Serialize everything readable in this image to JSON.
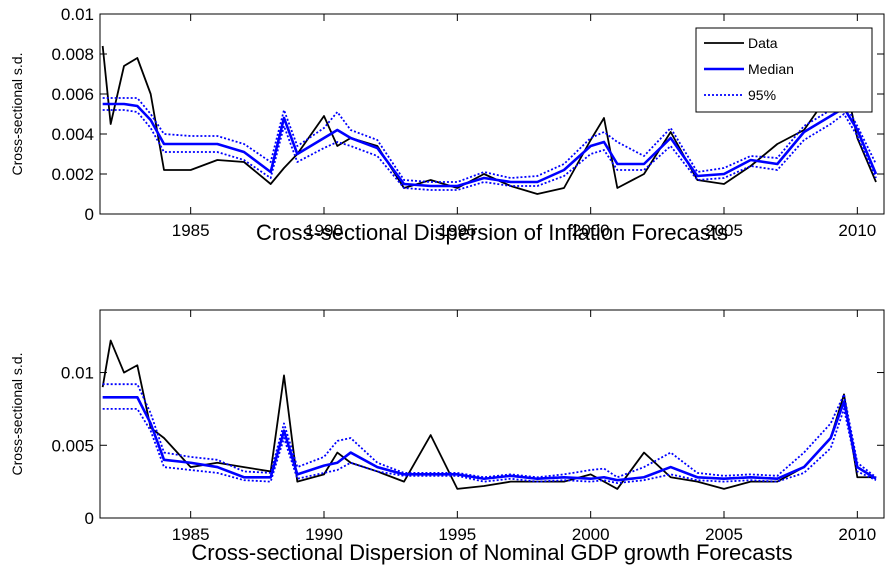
{
  "chart_data": [
    {
      "type": "line",
      "xlabel": "Cross-sectional Dispersion of Inflation Forecasts",
      "ylabel": "Cross-sectional s.d.",
      "xlim": [
        1981.6,
        2011
      ],
      "xticks": [
        1985,
        1990,
        1995,
        2000,
        2005,
        2010
      ],
      "ylim": [
        0,
        0.01
      ],
      "yticks": [
        0,
        0.002,
        0.004,
        0.006,
        0.008,
        0.01
      ],
      "legend": "upper right",
      "x": [
        1981.7,
        1982,
        1982.5,
        1983,
        1983.5,
        1984,
        1985,
        1986,
        1987,
        1988,
        1988.5,
        1989,
        1990,
        1990.5,
        1991,
        1992,
        1993,
        1994,
        1995,
        1996,
        1997,
        1998,
        1999,
        2000,
        2000.5,
        2001,
        2002,
        2003,
        2004,
        2005,
        2006,
        2007,
        2008,
        2009,
        2009.5,
        2010,
        2010.7
      ],
      "series": [
        {
          "name": "Data",
          "color": "#000000",
          "values": [
            0.0084,
            0.0045,
            0.0074,
            0.0078,
            0.006,
            0.0022,
            0.0022,
            0.0027,
            0.0026,
            0.0015,
            0.0023,
            0.003,
            0.0049,
            0.0034,
            0.0038,
            0.0034,
            0.0013,
            0.0017,
            0.0013,
            0.002,
            0.0014,
            0.001,
            0.0013,
            0.0037,
            0.0048,
            0.0013,
            0.002,
            0.0041,
            0.0017,
            0.0015,
            0.0024,
            0.0035,
            0.0042,
            0.0061,
            0.0069,
            0.0038,
            0.0016
          ]
        },
        {
          "name": "Median",
          "color": "#0000ff",
          "values": [
            0.0055,
            0.0055,
            0.0055,
            0.0054,
            0.0047,
            0.0035,
            0.0035,
            0.0035,
            0.0031,
            0.0021,
            0.0048,
            0.003,
            0.0038,
            0.0042,
            0.0038,
            0.0033,
            0.0015,
            0.0014,
            0.0014,
            0.0018,
            0.0016,
            0.0016,
            0.0022,
            0.0034,
            0.0036,
            0.0025,
            0.0025,
            0.0038,
            0.0019,
            0.002,
            0.0027,
            0.0025,
            0.0041,
            0.0049,
            0.0053,
            0.0042,
            0.002
          ]
        },
        {
          "name": "95%",
          "color": "#0000ff",
          "upper": [
            0.0058,
            0.0058,
            0.0058,
            0.0058,
            0.005,
            0.004,
            0.0039,
            0.0039,
            0.0035,
            0.0026,
            0.0052,
            0.0034,
            0.0043,
            0.0051,
            0.0042,
            0.0037,
            0.0017,
            0.0016,
            0.0016,
            0.0021,
            0.0018,
            0.0019,
            0.0025,
            0.0038,
            0.0041,
            0.0036,
            0.0029,
            0.0043,
            0.0021,
            0.0023,
            0.0029,
            0.0028,
            0.0044,
            0.0052,
            0.0056,
            0.0044,
            0.0025
          ],
          "lower": [
            0.0052,
            0.0052,
            0.0052,
            0.0051,
            0.0043,
            0.0031,
            0.0031,
            0.0031,
            0.0027,
            0.0018,
            0.0044,
            0.0026,
            0.0033,
            0.0036,
            0.0034,
            0.0029,
            0.0013,
            0.0012,
            0.0012,
            0.0016,
            0.0014,
            0.0014,
            0.0019,
            0.003,
            0.0032,
            0.0022,
            0.0022,
            0.0034,
            0.0017,
            0.0018,
            0.0024,
            0.0022,
            0.0037,
            0.0045,
            0.005,
            0.0039,
            0.0018
          ]
        }
      ]
    },
    {
      "type": "line",
      "xlabel": "Cross-sectional Dispersion of Nominal GDP growth Forecasts",
      "ylabel": "Cross-sectional s.d.",
      "xlim": [
        1981.6,
        2011
      ],
      "xticks": [
        1985,
        1990,
        1995,
        2000,
        2005,
        2010
      ],
      "ylim": [
        0,
        0.0143
      ],
      "yticks": [
        0,
        0.005,
        0.01
      ],
      "x": [
        1981.7,
        1982,
        1982.5,
        1983,
        1983.5,
        1984,
        1985,
        1986,
        1987,
        1988,
        1988.5,
        1989,
        1990,
        1990.5,
        1991,
        1992,
        1993,
        1994,
        1995,
        1996,
        1997,
        1998,
        1999,
        2000,
        2000.5,
        2001,
        2002,
        2003,
        2004,
        2005,
        2006,
        2007,
        2008,
        2009,
        2009.5,
        2010,
        2010.7
      ],
      "series": [
        {
          "color": "#000000",
          "values": [
            0.009,
            0.0122,
            0.01,
            0.0105,
            0.0062,
            0.0055,
            0.0035,
            0.0038,
            0.0035,
            0.0032,
            0.0098,
            0.0025,
            0.003,
            0.0045,
            0.0038,
            0.0032,
            0.0025,
            0.0057,
            0.002,
            0.0022,
            0.0025,
            0.0025,
            0.0025,
            0.003,
            0.0025,
            0.002,
            0.0045,
            0.0028,
            0.0025,
            0.002,
            0.0025,
            0.0025,
            0.0035,
            0.0055,
            0.0085,
            0.0028,
            0.0028
          ]
        },
        {
          "color": "#0000ff",
          "values": [
            0.0083,
            0.0083,
            0.0083,
            0.0083,
            0.0065,
            0.004,
            0.0038,
            0.0035,
            0.0028,
            0.0028,
            0.006,
            0.003,
            0.0036,
            0.0038,
            0.0045,
            0.0035,
            0.003,
            0.003,
            0.003,
            0.0027,
            0.0029,
            0.0027,
            0.0028,
            0.0027,
            0.0028,
            0.0026,
            0.0028,
            0.0035,
            0.0028,
            0.0027,
            0.0028,
            0.0027,
            0.0035,
            0.0055,
            0.008,
            0.0035,
            0.0027
          ]
        },
        {
          "color": "#0000ff",
          "upper": [
            0.0092,
            0.0092,
            0.0092,
            0.0092,
            0.0072,
            0.0045,
            0.0042,
            0.004,
            0.0032,
            0.0031,
            0.0065,
            0.0035,
            0.0042,
            0.0053,
            0.0055,
            0.0038,
            0.0031,
            0.0031,
            0.0031,
            0.0028,
            0.003,
            0.0028,
            0.003,
            0.0033,
            0.0034,
            0.0028,
            0.0035,
            0.0045,
            0.0031,
            0.0029,
            0.003,
            0.0029,
            0.0045,
            0.0065,
            0.0085,
            0.0038,
            0.0028
          ],
          "lower": [
            0.0075,
            0.0075,
            0.0075,
            0.0075,
            0.006,
            0.0035,
            0.0033,
            0.0031,
            0.0026,
            0.0025,
            0.0055,
            0.0027,
            0.0031,
            0.0033,
            0.0038,
            0.0032,
            0.0029,
            0.0029,
            0.0029,
            0.0025,
            0.0027,
            0.0025,
            0.0026,
            0.0025,
            0.0026,
            0.0024,
            0.0026,
            0.003,
            0.0026,
            0.0025,
            0.0026,
            0.0025,
            0.0031,
            0.0048,
            0.0075,
            0.0032,
            0.0026
          ]
        }
      ]
    }
  ]
}
